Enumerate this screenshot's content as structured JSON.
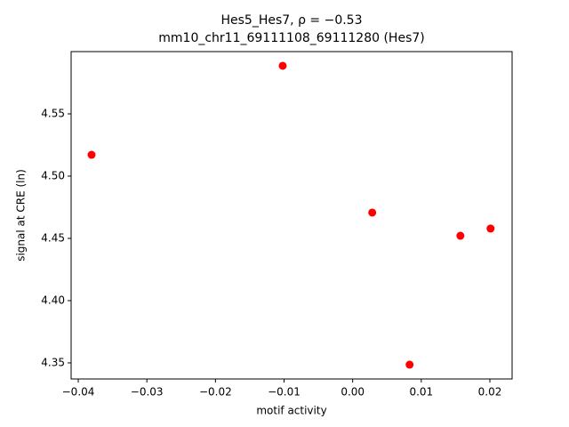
{
  "chart_data": {
    "type": "scatter",
    "title": "Hes5_Hes7, ρ = −0.53",
    "subtitle": "mm10_chr11_69111108_69111280 (Hes7)",
    "x_label": "motif activity",
    "y_label": "signal at CRE (ln)",
    "color": "#ff0000",
    "x": [
      -0.03806,
      -0.0102,
      0.00285,
      0.0083,
      0.0157,
      0.0201
    ],
    "values": [
      4.5171,
      4.5886,
      4.4707,
      4.3486,
      4.4521,
      4.4579
    ],
    "xlim": [
      -0.04104,
      0.02324
    ],
    "ylim": [
      4.3371,
      4.6
    ],
    "xticks": [
      {
        "value": -0.04,
        "label": "−0.04"
      },
      {
        "value": -0.03,
        "label": "−0.03"
      },
      {
        "value": -0.02,
        "label": "−0.02"
      },
      {
        "value": -0.01,
        "label": "−0.01"
      },
      {
        "value": 0,
        "label": "0.00"
      },
      0.01,
      0.02
    ],
    "yticks": [
      4.35,
      {
        "value": 4.4,
        "label": "4.40"
      },
      4.45,
      {
        "value": 4.5,
        "label": "4.50"
      },
      4.55
    ]
  }
}
